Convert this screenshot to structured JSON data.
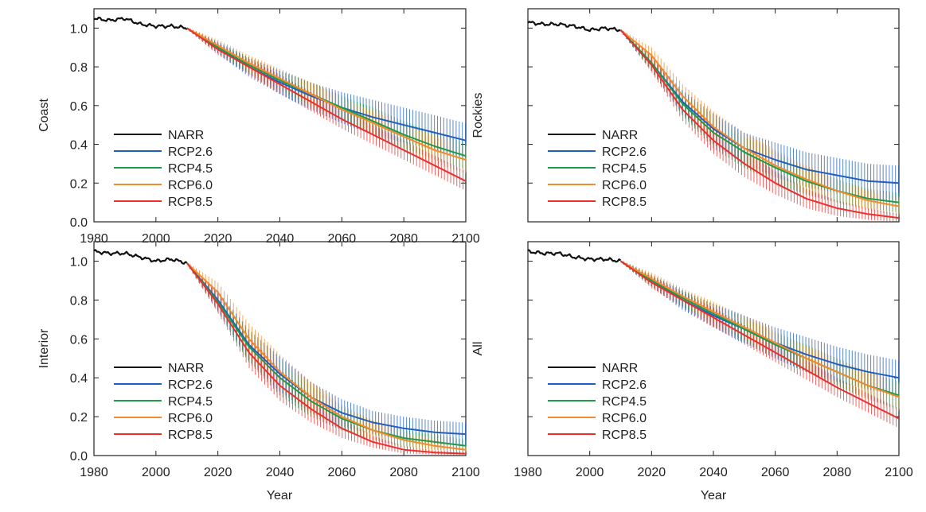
{
  "figure": {
    "xlabel": "Year"
  },
  "chart_data": [
    {
      "type": "line",
      "ylabel": "Coast",
      "xlim": [
        1980,
        2100
      ],
      "ylim": [
        0,
        1.1
      ],
      "xticks": [
        1980,
        2000,
        2020,
        2040,
        2060,
        2080,
        2100
      ],
      "yticks": [
        0.0,
        0.2,
        0.4,
        0.6,
        0.8,
        1.0
      ],
      "tick_labels_x": [
        "1980",
        "2000",
        "2020",
        "2040",
        "2060",
        "2080",
        "2100"
      ],
      "tick_labels_y": [
        "0.0",
        "0.2",
        "0.4",
        "0.6",
        "0.8",
        "1.0"
      ],
      "legend_position": "lower-left",
      "error_bars": "vertical range bars every year, 2010-2100",
      "series": [
        {
          "name": "NARR",
          "color": "#111111",
          "x": [
            1980,
            1985,
            1990,
            1995,
            2000,
            2005,
            2010
          ],
          "values": [
            1.05,
            1.04,
            1.05,
            1.02,
            1.01,
            1.01,
            1.0
          ]
        },
        {
          "name": "RCP2.6",
          "color": "#1f5fbf",
          "x": [
            2010,
            2020,
            2030,
            2040,
            2050,
            2060,
            2070,
            2080,
            2090,
            2100
          ],
          "values": [
            1.0,
            0.9,
            0.8,
            0.72,
            0.65,
            0.59,
            0.54,
            0.5,
            0.46,
            0.42
          ],
          "spread": [
            0.005,
            0.03,
            0.05,
            0.06,
            0.07,
            0.08,
            0.09,
            0.09,
            0.09,
            0.09
          ]
        },
        {
          "name": "RCP4.5",
          "color": "#1f9a4a",
          "x": [
            2010,
            2020,
            2030,
            2040,
            2050,
            2060,
            2070,
            2080,
            2090,
            2100
          ],
          "values": [
            1.0,
            0.9,
            0.81,
            0.73,
            0.66,
            0.59,
            0.52,
            0.45,
            0.39,
            0.34
          ],
          "spread": [
            0.005,
            0.03,
            0.04,
            0.05,
            0.06,
            0.06,
            0.07,
            0.07,
            0.07,
            0.07
          ]
        },
        {
          "name": "RCP6.0",
          "color": "#f28a2e",
          "x": [
            2010,
            2020,
            2030,
            2040,
            2050,
            2060,
            2070,
            2080,
            2090,
            2100
          ],
          "values": [
            1.0,
            0.91,
            0.82,
            0.74,
            0.66,
            0.58,
            0.51,
            0.44,
            0.37,
            0.32
          ],
          "spread": [
            0.005,
            0.03,
            0.04,
            0.05,
            0.06,
            0.06,
            0.06,
            0.07,
            0.07,
            0.07
          ]
        },
        {
          "name": "RCP8.5",
          "color": "#e8312e",
          "x": [
            2010,
            2020,
            2030,
            2040,
            2050,
            2060,
            2070,
            2080,
            2090,
            2100
          ],
          "values": [
            1.0,
            0.89,
            0.8,
            0.71,
            0.62,
            0.53,
            0.45,
            0.37,
            0.29,
            0.21
          ],
          "spread": [
            0.005,
            0.03,
            0.04,
            0.05,
            0.05,
            0.05,
            0.05,
            0.05,
            0.05,
            0.05
          ]
        }
      ]
    },
    {
      "type": "line",
      "ylabel": "Rockies",
      "xlim": [
        1980,
        2100
      ],
      "ylim": [
        0,
        1.1
      ],
      "xticks": [
        1980,
        2000,
        2020,
        2040,
        2060,
        2080,
        2100
      ],
      "yticks": [
        0.0,
        0.2,
        0.4,
        0.6,
        0.8,
        1.0
      ],
      "tick_labels_x": [],
      "tick_labels_y": [],
      "legend_position": "lower-left",
      "error_bars": "vertical range bars every year, 2010-2100",
      "series": [
        {
          "name": "NARR",
          "color": "#111111",
          "x": [
            1980,
            1985,
            1990,
            1995,
            2000,
            2005,
            2010
          ],
          "values": [
            1.03,
            1.02,
            1.02,
            1.01,
            0.99,
            1.0,
            0.99
          ]
        },
        {
          "name": "RCP2.6",
          "color": "#1f5fbf",
          "x": [
            2010,
            2020,
            2030,
            2040,
            2050,
            2060,
            2070,
            2080,
            2090,
            2100
          ],
          "values": [
            0.99,
            0.82,
            0.62,
            0.48,
            0.38,
            0.32,
            0.27,
            0.24,
            0.21,
            0.2
          ],
          "spread": [
            0.005,
            0.04,
            0.06,
            0.08,
            0.08,
            0.09,
            0.09,
            0.09,
            0.09,
            0.09
          ]
        },
        {
          "name": "RCP4.5",
          "color": "#1f9a4a",
          "x": [
            2010,
            2020,
            2030,
            2040,
            2050,
            2060,
            2070,
            2080,
            2090,
            2100
          ],
          "values": [
            0.99,
            0.82,
            0.61,
            0.46,
            0.36,
            0.28,
            0.21,
            0.16,
            0.12,
            0.1
          ],
          "spread": [
            0.005,
            0.04,
            0.06,
            0.08,
            0.08,
            0.08,
            0.07,
            0.06,
            0.05,
            0.05
          ]
        },
        {
          "name": "RCP6.0",
          "color": "#f28a2e",
          "x": [
            2010,
            2020,
            2030,
            2040,
            2050,
            2060,
            2070,
            2080,
            2090,
            2100
          ],
          "values": [
            0.99,
            0.86,
            0.65,
            0.49,
            0.38,
            0.29,
            0.22,
            0.16,
            0.11,
            0.08
          ],
          "spread": [
            0.005,
            0.04,
            0.06,
            0.08,
            0.08,
            0.08,
            0.07,
            0.06,
            0.05,
            0.05
          ]
        },
        {
          "name": "RCP8.5",
          "color": "#e8312e",
          "x": [
            2010,
            2020,
            2030,
            2040,
            2050,
            2060,
            2070,
            2080,
            2090,
            2100
          ],
          "values": [
            0.99,
            0.81,
            0.58,
            0.42,
            0.3,
            0.2,
            0.12,
            0.07,
            0.04,
            0.02
          ],
          "spread": [
            0.005,
            0.04,
            0.06,
            0.07,
            0.07,
            0.06,
            0.05,
            0.04,
            0.03,
            0.02
          ]
        }
      ]
    },
    {
      "type": "line",
      "ylabel": "Interior",
      "xlim": [
        1980,
        2100
      ],
      "ylim": [
        0,
        1.1
      ],
      "xticks": [
        1980,
        2000,
        2020,
        2040,
        2060,
        2080,
        2100
      ],
      "yticks": [
        0.0,
        0.2,
        0.4,
        0.6,
        0.8,
        1.0
      ],
      "tick_labels_x": [
        "1980",
        "2000",
        "2020",
        "2040",
        "2060",
        "2080",
        "2100"
      ],
      "tick_labels_y": [
        "0.0",
        "0.2",
        "0.4",
        "0.6",
        "0.8",
        "1.0"
      ],
      "legend_position": "lower-left",
      "error_bars": "vertical range bars every year, 2010-2100",
      "series": [
        {
          "name": "NARR",
          "color": "#111111",
          "x": [
            1980,
            1985,
            1990,
            1995,
            2000,
            2005,
            2010
          ],
          "values": [
            1.05,
            1.04,
            1.04,
            1.02,
            1.0,
            1.01,
            0.99
          ]
        },
        {
          "name": "RCP2.6",
          "color": "#1f5fbf",
          "x": [
            2010,
            2020,
            2030,
            2040,
            2050,
            2060,
            2070,
            2080,
            2090,
            2100
          ],
          "values": [
            0.99,
            0.8,
            0.57,
            0.42,
            0.3,
            0.22,
            0.17,
            0.14,
            0.12,
            0.11
          ],
          "spread": [
            0.005,
            0.05,
            0.08,
            0.09,
            0.08,
            0.07,
            0.06,
            0.06,
            0.06,
            0.06
          ]
        },
        {
          "name": "RCP4.5",
          "color": "#1f9a4a",
          "x": [
            2010,
            2020,
            2030,
            2040,
            2050,
            2060,
            2070,
            2080,
            2090,
            2100
          ],
          "values": [
            0.99,
            0.79,
            0.56,
            0.4,
            0.28,
            0.19,
            0.13,
            0.09,
            0.07,
            0.05
          ],
          "spread": [
            0.005,
            0.05,
            0.08,
            0.09,
            0.08,
            0.06,
            0.05,
            0.04,
            0.04,
            0.03
          ]
        },
        {
          "name": "RCP6.0",
          "color": "#f28a2e",
          "x": [
            2010,
            2020,
            2030,
            2040,
            2050,
            2060,
            2070,
            2080,
            2090,
            2100
          ],
          "values": [
            0.99,
            0.84,
            0.6,
            0.43,
            0.3,
            0.2,
            0.13,
            0.08,
            0.05,
            0.03
          ],
          "spread": [
            0.005,
            0.05,
            0.08,
            0.09,
            0.08,
            0.06,
            0.05,
            0.04,
            0.03,
            0.02
          ]
        },
        {
          "name": "RCP8.5",
          "color": "#e8312e",
          "x": [
            2010,
            2020,
            2030,
            2040,
            2050,
            2060,
            2070,
            2080,
            2090,
            2100
          ],
          "values": [
            0.99,
            0.78,
            0.53,
            0.36,
            0.24,
            0.14,
            0.07,
            0.03,
            0.015,
            0.01
          ],
          "spread": [
            0.005,
            0.05,
            0.08,
            0.08,
            0.07,
            0.05,
            0.03,
            0.02,
            0.01,
            0.01
          ]
        }
      ]
    },
    {
      "type": "line",
      "ylabel": "All",
      "xlim": [
        1980,
        2100
      ],
      "ylim": [
        0,
        1.1
      ],
      "xticks": [
        1980,
        2000,
        2020,
        2040,
        2060,
        2080,
        2100
      ],
      "yticks": [
        0.0,
        0.2,
        0.4,
        0.6,
        0.8,
        1.0
      ],
      "tick_labels_x": [
        "1980",
        "2000",
        "2020",
        "2040",
        "2060",
        "2080",
        "2100"
      ],
      "tick_labels_y": [],
      "legend_position": "lower-left",
      "error_bars": "vertical range bars every year, 2010-2100",
      "series": [
        {
          "name": "NARR",
          "color": "#111111",
          "x": [
            1980,
            1985,
            1990,
            1995,
            2000,
            2005,
            2010
          ],
          "values": [
            1.05,
            1.04,
            1.04,
            1.02,
            1.01,
            1.01,
            1.0
          ]
        },
        {
          "name": "RCP2.6",
          "color": "#1f5fbf",
          "x": [
            2010,
            2020,
            2030,
            2040,
            2050,
            2060,
            2070,
            2080,
            2090,
            2100
          ],
          "values": [
            1.0,
            0.9,
            0.8,
            0.72,
            0.65,
            0.58,
            0.52,
            0.47,
            0.43,
            0.4
          ],
          "spread": [
            0.005,
            0.03,
            0.05,
            0.06,
            0.07,
            0.08,
            0.09,
            0.09,
            0.09,
            0.09
          ]
        },
        {
          "name": "RCP4.5",
          "color": "#1f9a4a",
          "x": [
            2010,
            2020,
            2030,
            2040,
            2050,
            2060,
            2070,
            2080,
            2090,
            2100
          ],
          "values": [
            1.0,
            0.9,
            0.81,
            0.73,
            0.65,
            0.57,
            0.5,
            0.43,
            0.36,
            0.31
          ],
          "spread": [
            0.005,
            0.03,
            0.04,
            0.05,
            0.06,
            0.06,
            0.07,
            0.07,
            0.07,
            0.07
          ]
        },
        {
          "name": "RCP6.0",
          "color": "#f28a2e",
          "x": [
            2010,
            2020,
            2030,
            2040,
            2050,
            2060,
            2070,
            2080,
            2090,
            2100
          ],
          "values": [
            1.0,
            0.91,
            0.82,
            0.74,
            0.66,
            0.58,
            0.5,
            0.43,
            0.36,
            0.3
          ],
          "spread": [
            0.005,
            0.03,
            0.04,
            0.05,
            0.06,
            0.06,
            0.06,
            0.07,
            0.07,
            0.07
          ]
        },
        {
          "name": "RCP8.5",
          "color": "#e8312e",
          "x": [
            2010,
            2020,
            2030,
            2040,
            2050,
            2060,
            2070,
            2080,
            2090,
            2100
          ],
          "values": [
            1.0,
            0.89,
            0.8,
            0.71,
            0.62,
            0.53,
            0.44,
            0.35,
            0.27,
            0.19
          ],
          "spread": [
            0.005,
            0.03,
            0.04,
            0.05,
            0.05,
            0.05,
            0.05,
            0.05,
            0.05,
            0.05
          ]
        }
      ]
    }
  ]
}
